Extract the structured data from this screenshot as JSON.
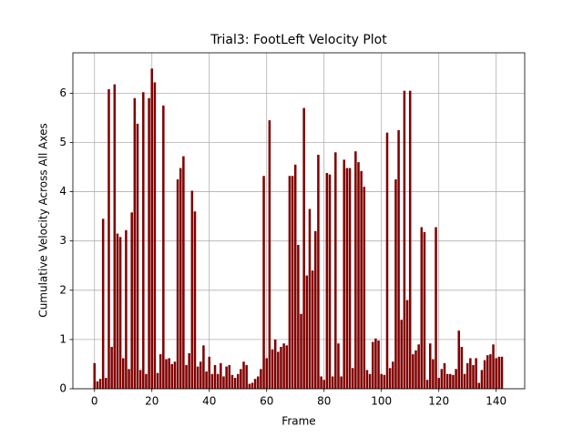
{
  "chart_data": {
    "type": "bar",
    "title": "Trial3: FootLeft Velocity Plot",
    "x_label": "Frame",
    "y_label": "Cumulative Velocity Across All Axes",
    "color": "#800000",
    "grid": true,
    "xlim": [
      -7.54,
      149.94
    ],
    "ylim": [
      0,
      6.82
    ],
    "xticks": [
      0,
      20,
      40,
      60,
      80,
      100,
      120,
      140
    ],
    "yticks": [
      0,
      1,
      2,
      3,
      4,
      5,
      6
    ],
    "x": [
      0,
      1,
      2,
      3,
      4,
      5,
      6,
      7,
      8,
      9,
      10,
      11,
      12,
      13,
      14,
      15,
      16,
      17,
      18,
      19,
      20,
      21,
      22,
      23,
      24,
      25,
      26,
      27,
      28,
      29,
      30,
      31,
      32,
      33,
      34,
      35,
      36,
      37,
      38,
      39,
      40,
      41,
      42,
      43,
      44,
      45,
      46,
      47,
      48,
      49,
      50,
      51,
      52,
      53,
      54,
      55,
      56,
      57,
      58,
      59,
      60,
      61,
      62,
      63,
      64,
      65,
      66,
      67,
      68,
      69,
      70,
      71,
      72,
      73,
      74,
      75,
      76,
      77,
      78,
      79,
      80,
      81,
      82,
      83,
      84,
      85,
      86,
      87,
      88,
      89,
      90,
      91,
      92,
      93,
      94,
      95,
      96,
      97,
      98,
      99,
      100,
      101,
      102,
      103,
      104,
      105,
      106,
      107,
      108,
      109,
      110,
      111,
      112,
      113,
      114,
      115,
      116,
      117,
      118,
      119,
      120,
      121,
      122,
      123,
      124,
      125,
      126,
      127,
      128,
      129,
      130,
      131,
      132,
      133,
      134,
      135,
      136,
      137,
      138,
      139,
      140,
      141,
      142
    ],
    "values": [
      0.52,
      0.15,
      0.2,
      3.45,
      0.22,
      6.08,
      0.85,
      6.18,
      3.15,
      3.08,
      0.62,
      3.22,
      0.4,
      3.58,
      5.9,
      5.38,
      0.38,
      6.02,
      0.3,
      5.9,
      6.5,
      6.22,
      0.32,
      0.7,
      5.75,
      0.6,
      0.62,
      0.5,
      0.55,
      4.25,
      4.48,
      4.72,
      0.48,
      0.72,
      4.02,
      3.6,
      0.45,
      0.55,
      0.88,
      0.35,
      0.65,
      0.3,
      0.48,
      0.3,
      0.52,
      0.25,
      0.45,
      0.48,
      0.28,
      0.22,
      0.3,
      0.4,
      0.55,
      0.48,
      0.1,
      0.12,
      0.2,
      0.25,
      0.4,
      4.32,
      0.62,
      5.45,
      0.8,
      1.0,
      0.75,
      0.85,
      0.92,
      0.88,
      4.32,
      4.32,
      4.55,
      2.92,
      1.52,
      5.7,
      2.3,
      3.65,
      2.4,
      3.2,
      4.75,
      0.25,
      0.18,
      4.38,
      4.35,
      0.25,
      4.8,
      0.92,
      0.25,
      4.65,
      4.48,
      4.48,
      0.42,
      4.82,
      4.6,
      4.42,
      4.1,
      0.38,
      0.3,
      0.95,
      1.02,
      0.98,
      0.3,
      0.28,
      5.2,
      0.42,
      0.55,
      4.25,
      5.25,
      1.4,
      6.05,
      1.8,
      6.05,
      0.7,
      0.78,
      0.9,
      3.28,
      3.18,
      0.18,
      0.92,
      0.6,
      3.28,
      0.22,
      0.4,
      0.52,
      0.3,
      0.3,
      0.28,
      0.4,
      1.18,
      0.85,
      0.3,
      0.52,
      0.62,
      0.48,
      0.62,
      0.12,
      0.38,
      0.58,
      0.68,
      0.7,
      0.9,
      0.62,
      0.65,
      0.65
    ]
  }
}
